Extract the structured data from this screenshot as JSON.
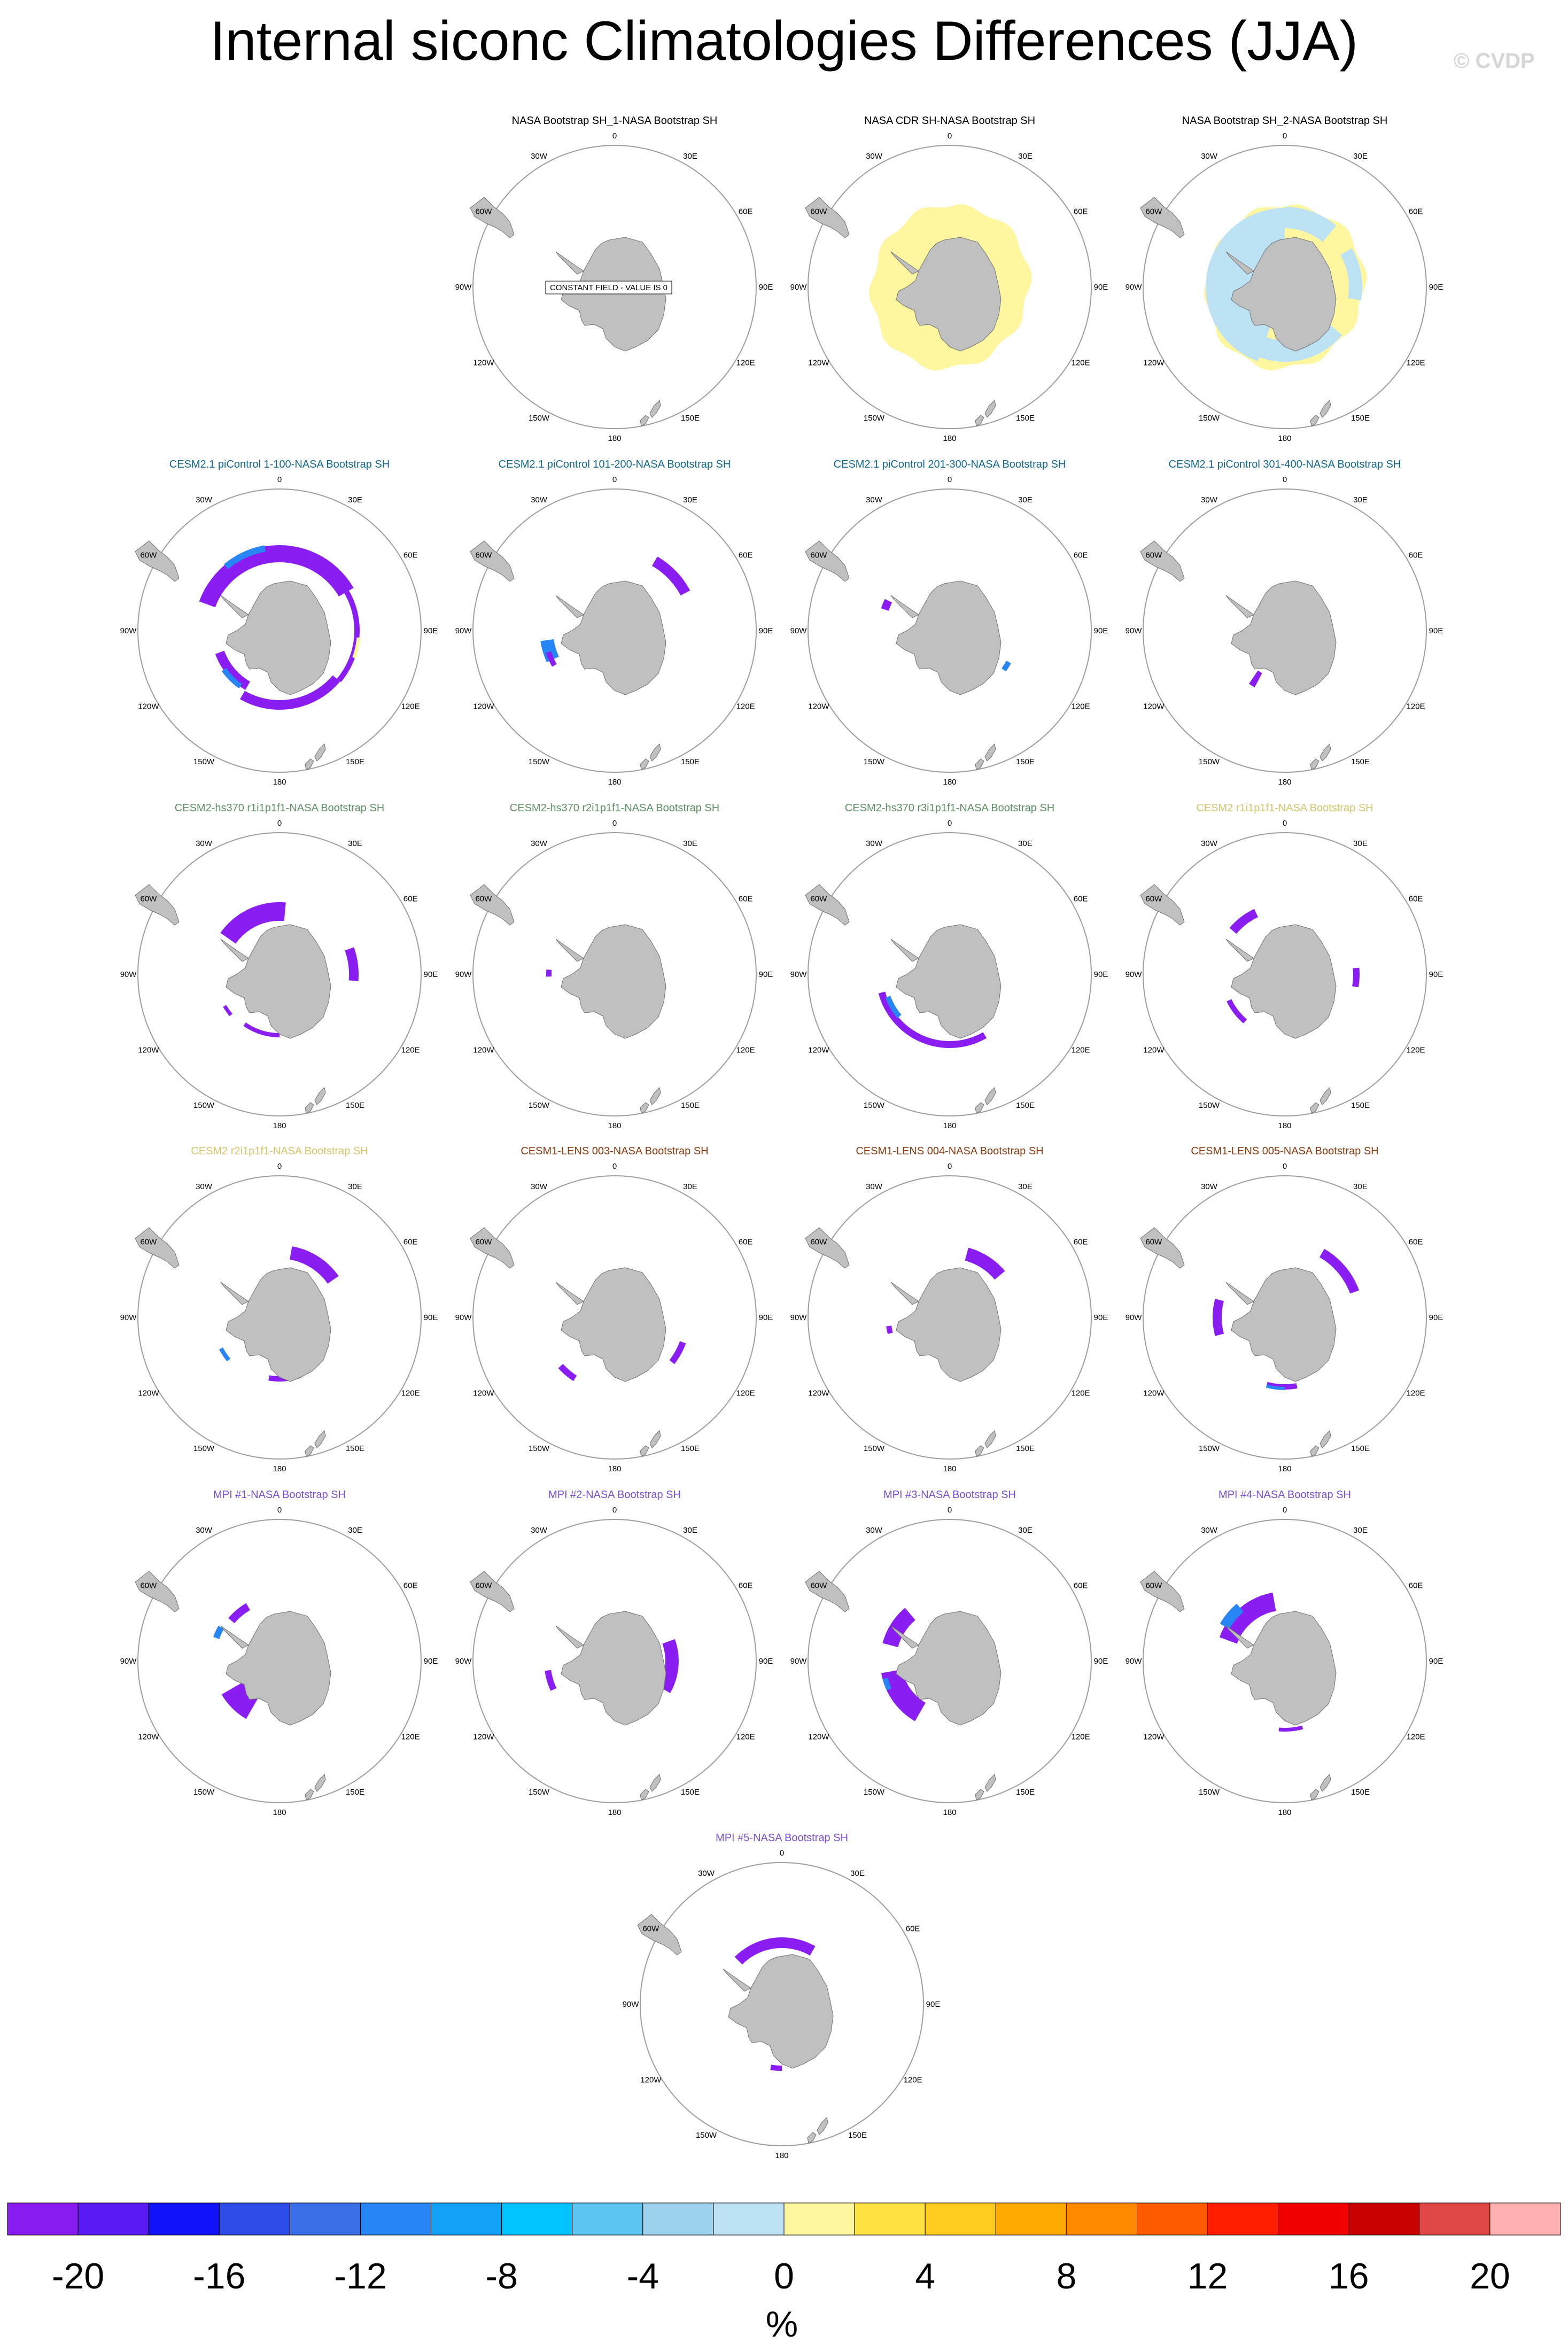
{
  "title": "Internal siconc Climatologies Differences (JJA)",
  "watermark": "© CVDP",
  "colors": {
    "land": "#c0c0c0",
    "land_edge": "#6f6f6f",
    "circle": "#9e9e9e",
    "title_black": "#000000",
    "title_cesm21": "#11698e",
    "title_cesm2hs": "#5d8f62",
    "title_cesm2": "#d6c66a",
    "title_cesm1": "#8b3a0f",
    "title_mpi": "#7a4fd4"
  },
  "lon_labels": [
    "0",
    "30E",
    "60E",
    "90E",
    "120E",
    "150E",
    "180",
    "150W",
    "120W",
    "90W",
    "60W",
    "30W"
  ],
  "constant_field_text": "CONSTANT FIELD - VALUE IS 0",
  "panels": [
    {
      "title": "NASA Bootstrap SH_1-NASA Bootstrap SH",
      "title_color": "title_black",
      "pattern": "constant"
    },
    {
      "title": "NASA CDR SH-NASA Bootstrap SH",
      "title_color": "title_black",
      "pattern": "cdr"
    },
    {
      "title": "NASA Bootstrap SH_2-NASA Bootstrap SH",
      "title_color": "title_black",
      "pattern": "bs2"
    },
    {
      "title": "CESM2.1 piControl 1-100-NASA Bootstrap SH",
      "title_color": "title_cesm21",
      "pattern": "ring"
    },
    {
      "title": "CESM2.1 piControl 101-200-NASA Bootstrap SH",
      "title_color": "title_cesm21",
      "pattern": "p101"
    },
    {
      "title": "CESM2.1 piControl 201-300-NASA Bootstrap SH",
      "title_color": "title_cesm21",
      "pattern": "p201"
    },
    {
      "title": "CESM2.1 piControl 301-400-NASA Bootstrap SH",
      "title_color": "title_cesm21",
      "pattern": "p301"
    },
    {
      "title": "CESM2-hs370 r1i1p1f1-NASA Bootstrap SH",
      "title_color": "title_cesm2hs",
      "pattern": "hs1"
    },
    {
      "title": "CESM2-hs370 r2i1p1f1-NASA Bootstrap SH",
      "title_color": "title_cesm2hs",
      "pattern": "hs2"
    },
    {
      "title": "CESM2-hs370 r3i1p1f1-NASA Bootstrap SH",
      "title_color": "title_cesm2hs",
      "pattern": "hs3"
    },
    {
      "title": "CESM2 r1i1p1f1-NASA Bootstrap SH",
      "title_color": "title_cesm2",
      "pattern": "c2r1"
    },
    {
      "title": "CESM2 r2i1p1f1-NASA Bootstrap SH",
      "title_color": "title_cesm2",
      "pattern": "c2r2"
    },
    {
      "title": "CESM1-LENS 003-NASA Bootstrap SH",
      "title_color": "title_cesm1",
      "pattern": "l003"
    },
    {
      "title": "CESM1-LENS 004-NASA Bootstrap SH",
      "title_color": "title_cesm1",
      "pattern": "l004"
    },
    {
      "title": "CESM1-LENS 005-NASA Bootstrap SH",
      "title_color": "title_cesm1",
      "pattern": "l005"
    },
    {
      "title": "MPI #1-NASA Bootstrap SH",
      "title_color": "title_mpi",
      "pattern": "m1"
    },
    {
      "title": "MPI #2-NASA Bootstrap SH",
      "title_color": "title_mpi",
      "pattern": "m2"
    },
    {
      "title": "MPI #3-NASA Bootstrap SH",
      "title_color": "title_mpi",
      "pattern": "m3"
    },
    {
      "title": "MPI #4-NASA Bootstrap SH",
      "title_color": "title_mpi",
      "pattern": "m4"
    },
    {
      "title": "MPI #5-NASA Bootstrap SH",
      "title_color": "title_mpi",
      "pattern": "m5"
    }
  ],
  "colorbar": {
    "colors": [
      "#8a1df2",
      "#5a1af4",
      "#1212f8",
      "#2f4de8",
      "#3a6fe8",
      "#2786f3",
      "#12a2f8",
      "#00c3ff",
      "#5dc5f2",
      "#9dd2ef",
      "#bde2f4",
      "#fff6a0",
      "#ffe23f",
      "#ffcc1f",
      "#ffaa00",
      "#ff8a00",
      "#ff5c00",
      "#ff1f00",
      "#f00000",
      "#c80000",
      "#e04848",
      "#ffb0b0"
    ],
    "tick_labels": [
      "-20",
      "-16",
      "-12",
      "-8",
      "-4",
      "0",
      "4",
      "8",
      "12",
      "16",
      "20"
    ],
    "unit": "%"
  }
}
